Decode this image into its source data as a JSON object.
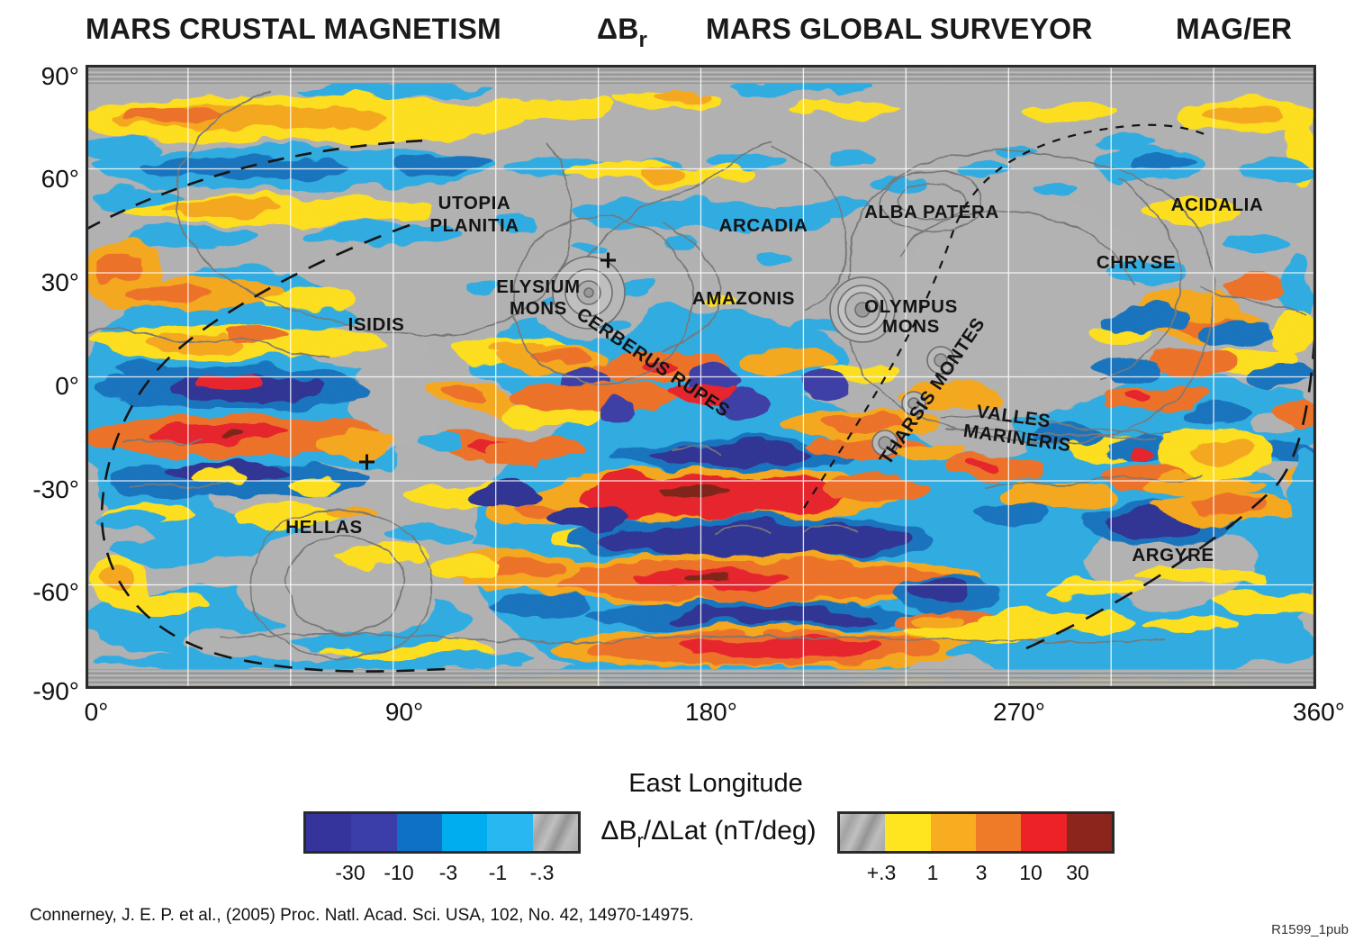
{
  "title": {
    "left": "MARS CRUSTAL MAGNETISM",
    "delta": "ΔB",
    "delta_sub": "r",
    "center": "MARS GLOBAL SURVEYOR",
    "right": "MAG/ER"
  },
  "axes": {
    "lat": [
      "90°",
      "60°",
      "30°",
      "0°",
      "-30°",
      "-60°",
      "-90°"
    ],
    "lon": [
      "0°",
      "90°",
      "180°",
      "270°",
      "360°"
    ],
    "xlabel": "East Longitude"
  },
  "map": {
    "regions": [
      "UTOPIA",
      "PLANITIA",
      "ARCADIA",
      "ALBA PATERA",
      "ACIDALIA",
      "CHRYSE",
      "ELYSIUM",
      "MONS",
      "AMAZONIS",
      "ISIDIS",
      "CERBERUS RUPES",
      "OLYMPUS",
      "MONS",
      "THARSIS MONTES",
      "VALLES",
      "MARINERIS",
      "HELLAS",
      "ARGYRE"
    ],
    "marker": "+"
  },
  "colorbar": {
    "label_pre": "ΔB",
    "label_sub": "r",
    "label_post": "/ΔLat (nT/deg)",
    "negative": {
      "ticks": [
        "-30",
        "-10",
        "-3",
        "-1",
        "-.3"
      ],
      "colors": [
        "#35349C",
        "#3B3EA8",
        "#0E71C5",
        "#00ADEF",
        "#29B7F2"
      ]
    },
    "positive": {
      "ticks": [
        "+.3",
        "1",
        "3",
        "10",
        "30"
      ],
      "colors": [
        "#FFE51F",
        "#F8AC1F",
        "#EF7A28",
        "#EC2227",
        "#8C251C"
      ]
    }
  },
  "citation": "Connerney, J. E. P. et al., (2005) Proc. Natl. Acad. Sci. USA, 102, No. 42, 14970-14975.",
  "figure_id": "R1599_1pub"
}
